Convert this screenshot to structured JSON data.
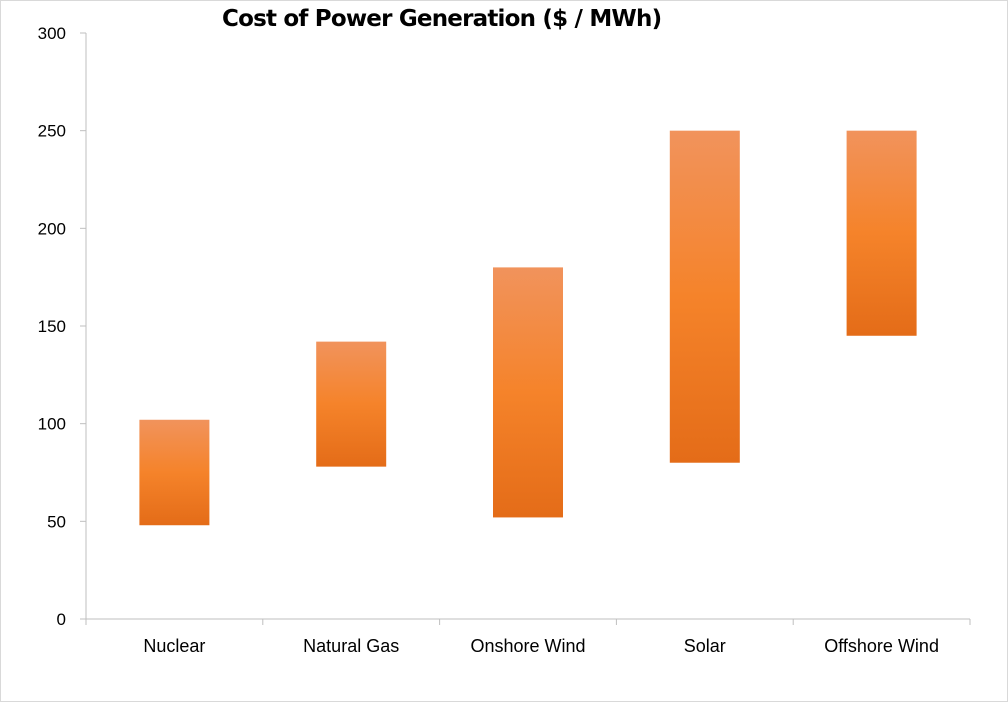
{
  "chart_data": {
    "type": "bar",
    "subtype": "floating-range",
    "title": "Cost of Power Generation ($ / MWh)",
    "xlabel": "",
    "ylabel": "",
    "categories": [
      "Nuclear",
      "Natural Gas",
      "Onshore Wind",
      "Solar",
      "Offshore Wind"
    ],
    "series": [
      {
        "low": [
          48,
          78,
          52,
          80,
          145
        ],
        "high": [
          102,
          142,
          180,
          250,
          250
        ]
      }
    ],
    "ylim": [
      0,
      300
    ],
    "yticks": [
      0,
      50,
      100,
      150,
      200,
      250,
      300
    ],
    "grid": false,
    "legend": "none",
    "colors": {
      "bar_top": "#f1935c",
      "bar_mid": "#f5832a",
      "bar_bottom": "#e46c18",
      "axis": "#bfbfbf"
    }
  }
}
